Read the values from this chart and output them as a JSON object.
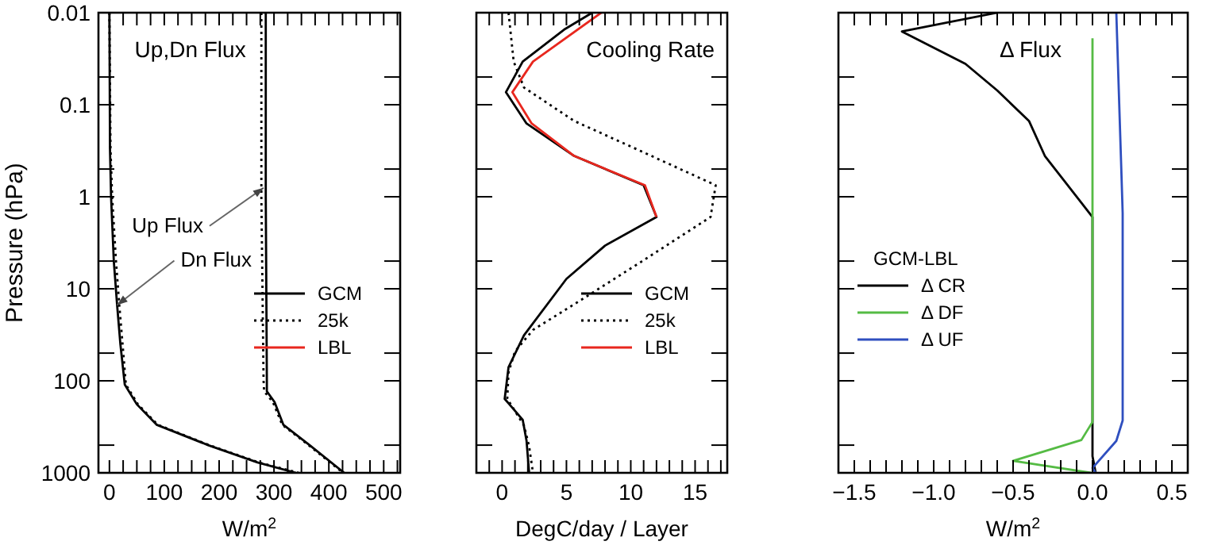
{
  "chart_data": [
    {
      "type": "line",
      "title": "Up,Dn Flux",
      "xlabel": "W/m$^{2}$",
      "ylabel": "Pressure (hPa)",
      "log": "y",
      "legend": "bottom right",
      "xlim": [
        -20,
        530
      ],
      "ylim": [
        1000,
        0.01
      ],
      "xticks": [
        0,
        100,
        200,
        300,
        400,
        500,
        {
          "value": 25,
          "label": null
        },
        {
          "value": 50,
          "label": null
        },
        {
          "value": 75,
          "label": null
        },
        {
          "value": 125,
          "label": null
        },
        {
          "value": 150,
          "label": null
        },
        {
          "value": 175,
          "label": null
        },
        {
          "value": 225,
          "label": null
        },
        {
          "value": 250,
          "label": null
        },
        {
          "value": 275,
          "label": null
        },
        {
          "value": 325,
          "label": null
        },
        {
          "value": 350,
          "label": null
        },
        {
          "value": 375,
          "label": null
        },
        {
          "value": 425,
          "label": null
        },
        {
          "value": 450,
          "label": null
        },
        {
          "value": 475,
          "label": null
        },
        {
          "value": 525,
          "label": null
        }
      ],
      "yticks": [
        0.01,
        0.1,
        1,
        10,
        100,
        1000,
        {
          "value": 0.05,
          "label": null
        },
        {
          "value": 0.5,
          "label": null
        },
        {
          "value": 5,
          "label": null
        },
        {
          "value": 50,
          "label": null
        },
        {
          "value": 500,
          "label": null
        }
      ],
      "series": [
        {
          "name": "GCM",
          "color": "#000000",
          "line_style": "solid",
          "x": [
            0,
            1,
            3,
            8,
            14,
            20,
            28,
            50,
            86,
            180,
            270,
            340
          ],
          "values": [
            0.01,
            0.3,
            1,
            5,
            15,
            40,
            110,
            180,
            300,
            500,
            770,
            1000
          ]
        },
        {
          "color": "#000000",
          "line_style": "solid",
          "x": [
            285,
            285,
            286,
            287,
            287,
            301,
            317,
            365,
            428
          ],
          "values": [
            0.01,
            1,
            10,
            100,
            130,
            170,
            300,
            500,
            1000
          ]
        },
        {
          "name": "25k",
          "color": "#000000",
          "line_style": "dotted",
          "x": [
            0,
            2,
            5,
            12,
            18,
            24,
            30,
            52,
            88,
            182,
            272,
            345
          ],
          "values": [
            0.01,
            0.3,
            1,
            5,
            15,
            40,
            110,
            180,
            300,
            500,
            770,
            1000
          ]
        },
        {
          "color": "#000000",
          "line_style": "dotted",
          "x": [
            277,
            277,
            279,
            281,
            282,
            298,
            315,
            363,
            426
          ],
          "values": [
            0.01,
            1,
            10,
            100,
            130,
            170,
            300,
            500,
            1000
          ]
        },
        {
          "name": "LBL",
          "color": "#e8271e",
          "line_style": "solid"
        }
      ],
      "annotations": [
        {
          "text": "Up Flux",
          "x": 281,
          "y": 0.8
        },
        {
          "text": "Dn Flux",
          "x": 14,
          "y": 15
        }
      ]
    },
    {
      "type": "line",
      "title": "Cooling Rate",
      "xlabel": "DegC/day / Layer",
      "log": "y",
      "legend": "bottom right",
      "tick_labels": "x",
      "xlim": [
        -2,
        17.5
      ],
      "ylim": [
        1000,
        0.01
      ],
      "xticks": [
        0,
        5,
        10,
        15,
        {
          "value": -1,
          "label": null
        },
        {
          "value": 1,
          "label": null
        },
        {
          "value": 2,
          "label": null
        },
        {
          "value": 3,
          "label": null
        },
        {
          "value": 4,
          "label": null
        },
        {
          "value": 6,
          "label": null
        },
        {
          "value": 7,
          "label": null
        },
        {
          "value": 8,
          "label": null
        },
        {
          "value": 9,
          "label": null
        },
        {
          "value": 11,
          "label": null
        },
        {
          "value": 12,
          "label": null
        },
        {
          "value": 13,
          "label": null
        },
        {
          "value": 14,
          "label": null
        },
        {
          "value": 16,
          "label": null
        },
        {
          "value": 17,
          "label": null
        }
      ],
      "yticks": [
        {
          "value": 0.01,
          "label": null
        },
        {
          "value": 0.1,
          "label": null
        },
        {
          "value": 1,
          "label": null
        },
        {
          "value": 10,
          "label": null
        },
        {
          "value": 100,
          "label": null
        },
        {
          "value": 1000,
          "label": null
        },
        {
          "value": 0.05,
          "label": null
        },
        {
          "value": 0.5,
          "label": null
        },
        {
          "value": 5,
          "label": null
        },
        {
          "value": 50,
          "label": null
        },
        {
          "value": 500,
          "label": null
        }
      ],
      "series": [
        {
          "name": "GCM",
          "color": "#000000",
          "line_style": "solid",
          "x": [
            7.0,
            4.9,
            1.6,
            0.3,
            1.9,
            5.6,
            11.0,
            12.0,
            8.0,
            5.0,
            1.7,
            0.5,
            0.2,
            1.6,
            1.9,
            2.1
          ],
          "values": [
            0.01,
            0.015,
            0.034,
            0.073,
            0.16,
            0.36,
            0.75,
            1.66,
            3.4,
            7.8,
            32,
            71,
            157,
            265,
            450,
            1000
          ]
        },
        {
          "name": "25k",
          "color": "#000000",
          "line_style": "dotted",
          "x": [
            0.5,
            0.9,
            1.7,
            5.6,
            10.8,
            16.6,
            16.2,
            10.8,
            6.3,
            2.4,
            1.0,
            0.5,
            0.4,
            1.7,
            2.1,
            2.4
          ],
          "values": [
            0.01,
            0.034,
            0.065,
            0.15,
            0.32,
            0.75,
            1.66,
            5.1,
            12.8,
            28,
            48,
            81,
            157,
            305,
            516,
            1000
          ]
        },
        {
          "name": "LBL",
          "color": "#e8271e",
          "line_style": "solid",
          "x": [
            7.7,
            2.4,
            0.8,
            2.3,
            5.6,
            11.1,
            12.0
          ],
          "values": [
            0.01,
            0.034,
            0.073,
            0.16,
            0.36,
            0.75,
            1.66
          ]
        }
      ]
    },
    {
      "type": "line",
      "title": "Δ Flux",
      "xlabel": "W/m$^{2}$",
      "log": "y",
      "legend": "left",
      "legend_title": "GCM-LBL",
      "tick_labels": "x",
      "xlim": [
        -1.6,
        0.6
      ],
      "ylim": [
        1000,
        0.01
      ],
      "xticks": [
        {
          "value": -1.5,
          "label": "−1.5"
        },
        {
          "value": -1,
          "label": "−1.0"
        },
        {
          "value": -0.5,
          "label": "−0.5"
        },
        {
          "value": 0,
          "label": "0.0"
        },
        {
          "value": 0.5,
          "label": "0.5"
        },
        {
          "value": -1.4,
          "label": null
        },
        {
          "value": -1.3,
          "label": null
        },
        {
          "value": -1.2,
          "label": null
        },
        {
          "value": -1.1,
          "label": null
        },
        {
          "value": -0.9,
          "label": null
        },
        {
          "value": -0.8,
          "label": null
        },
        {
          "value": -0.7,
          "label": null
        },
        {
          "value": -0.6,
          "label": null
        },
        {
          "value": -0.4,
          "label": null
        },
        {
          "value": -0.3,
          "label": null
        },
        {
          "value": -0.2,
          "label": null
        },
        {
          "value": -0.1,
          "label": null
        },
        {
          "value": 0.1,
          "label": null
        },
        {
          "value": 0.2,
          "label": null
        },
        {
          "value": 0.3,
          "label": null
        },
        {
          "value": 0.4,
          "label": null
        }
      ],
      "yticks": [
        {
          "value": 0.01,
          "label": null
        },
        {
          "value": 0.1,
          "label": null
        },
        {
          "value": 1,
          "label": null
        },
        {
          "value": 10,
          "label": null
        },
        {
          "value": 100,
          "label": null
        },
        {
          "value": 1000,
          "label": null
        },
        {
          "value": 0.05,
          "label": null
        },
        {
          "value": 0.5,
          "label": null
        },
        {
          "value": 5,
          "label": null
        },
        {
          "value": 50,
          "label": null
        },
        {
          "value": 500,
          "label": null
        }
      ],
      "series": [
        {
          "name": "Δ CR",
          "color": "#000000",
          "line_style": "solid",
          "x": [
            -0.6,
            -1.2,
            -0.8,
            -0.6,
            -0.4,
            -0.3,
            0,
            0,
            0.02
          ],
          "values": [
            0.01,
            0.016,
            0.036,
            0.07,
            0.15,
            0.36,
            1.66,
            660,
            1000
          ]
        },
        {
          "name": "Δ DF",
          "color": "#55bb44",
          "line_style": "solid",
          "x": [
            0,
            0,
            -0.07,
            -0.5,
            -0.01
          ],
          "values": [
            0.019,
            280,
            440,
            740,
            1000
          ]
        },
        {
          "name": "Δ UF",
          "color": "#2f4fbf",
          "line_style": "solid",
          "x": [
            0.15,
            0.18,
            0.19,
            0.19,
            0.15,
            0,
            0.02
          ],
          "values": [
            0.01,
            0.42,
            1.5,
            270,
            450,
            885,
            1000
          ]
        }
      ]
    }
  ]
}
